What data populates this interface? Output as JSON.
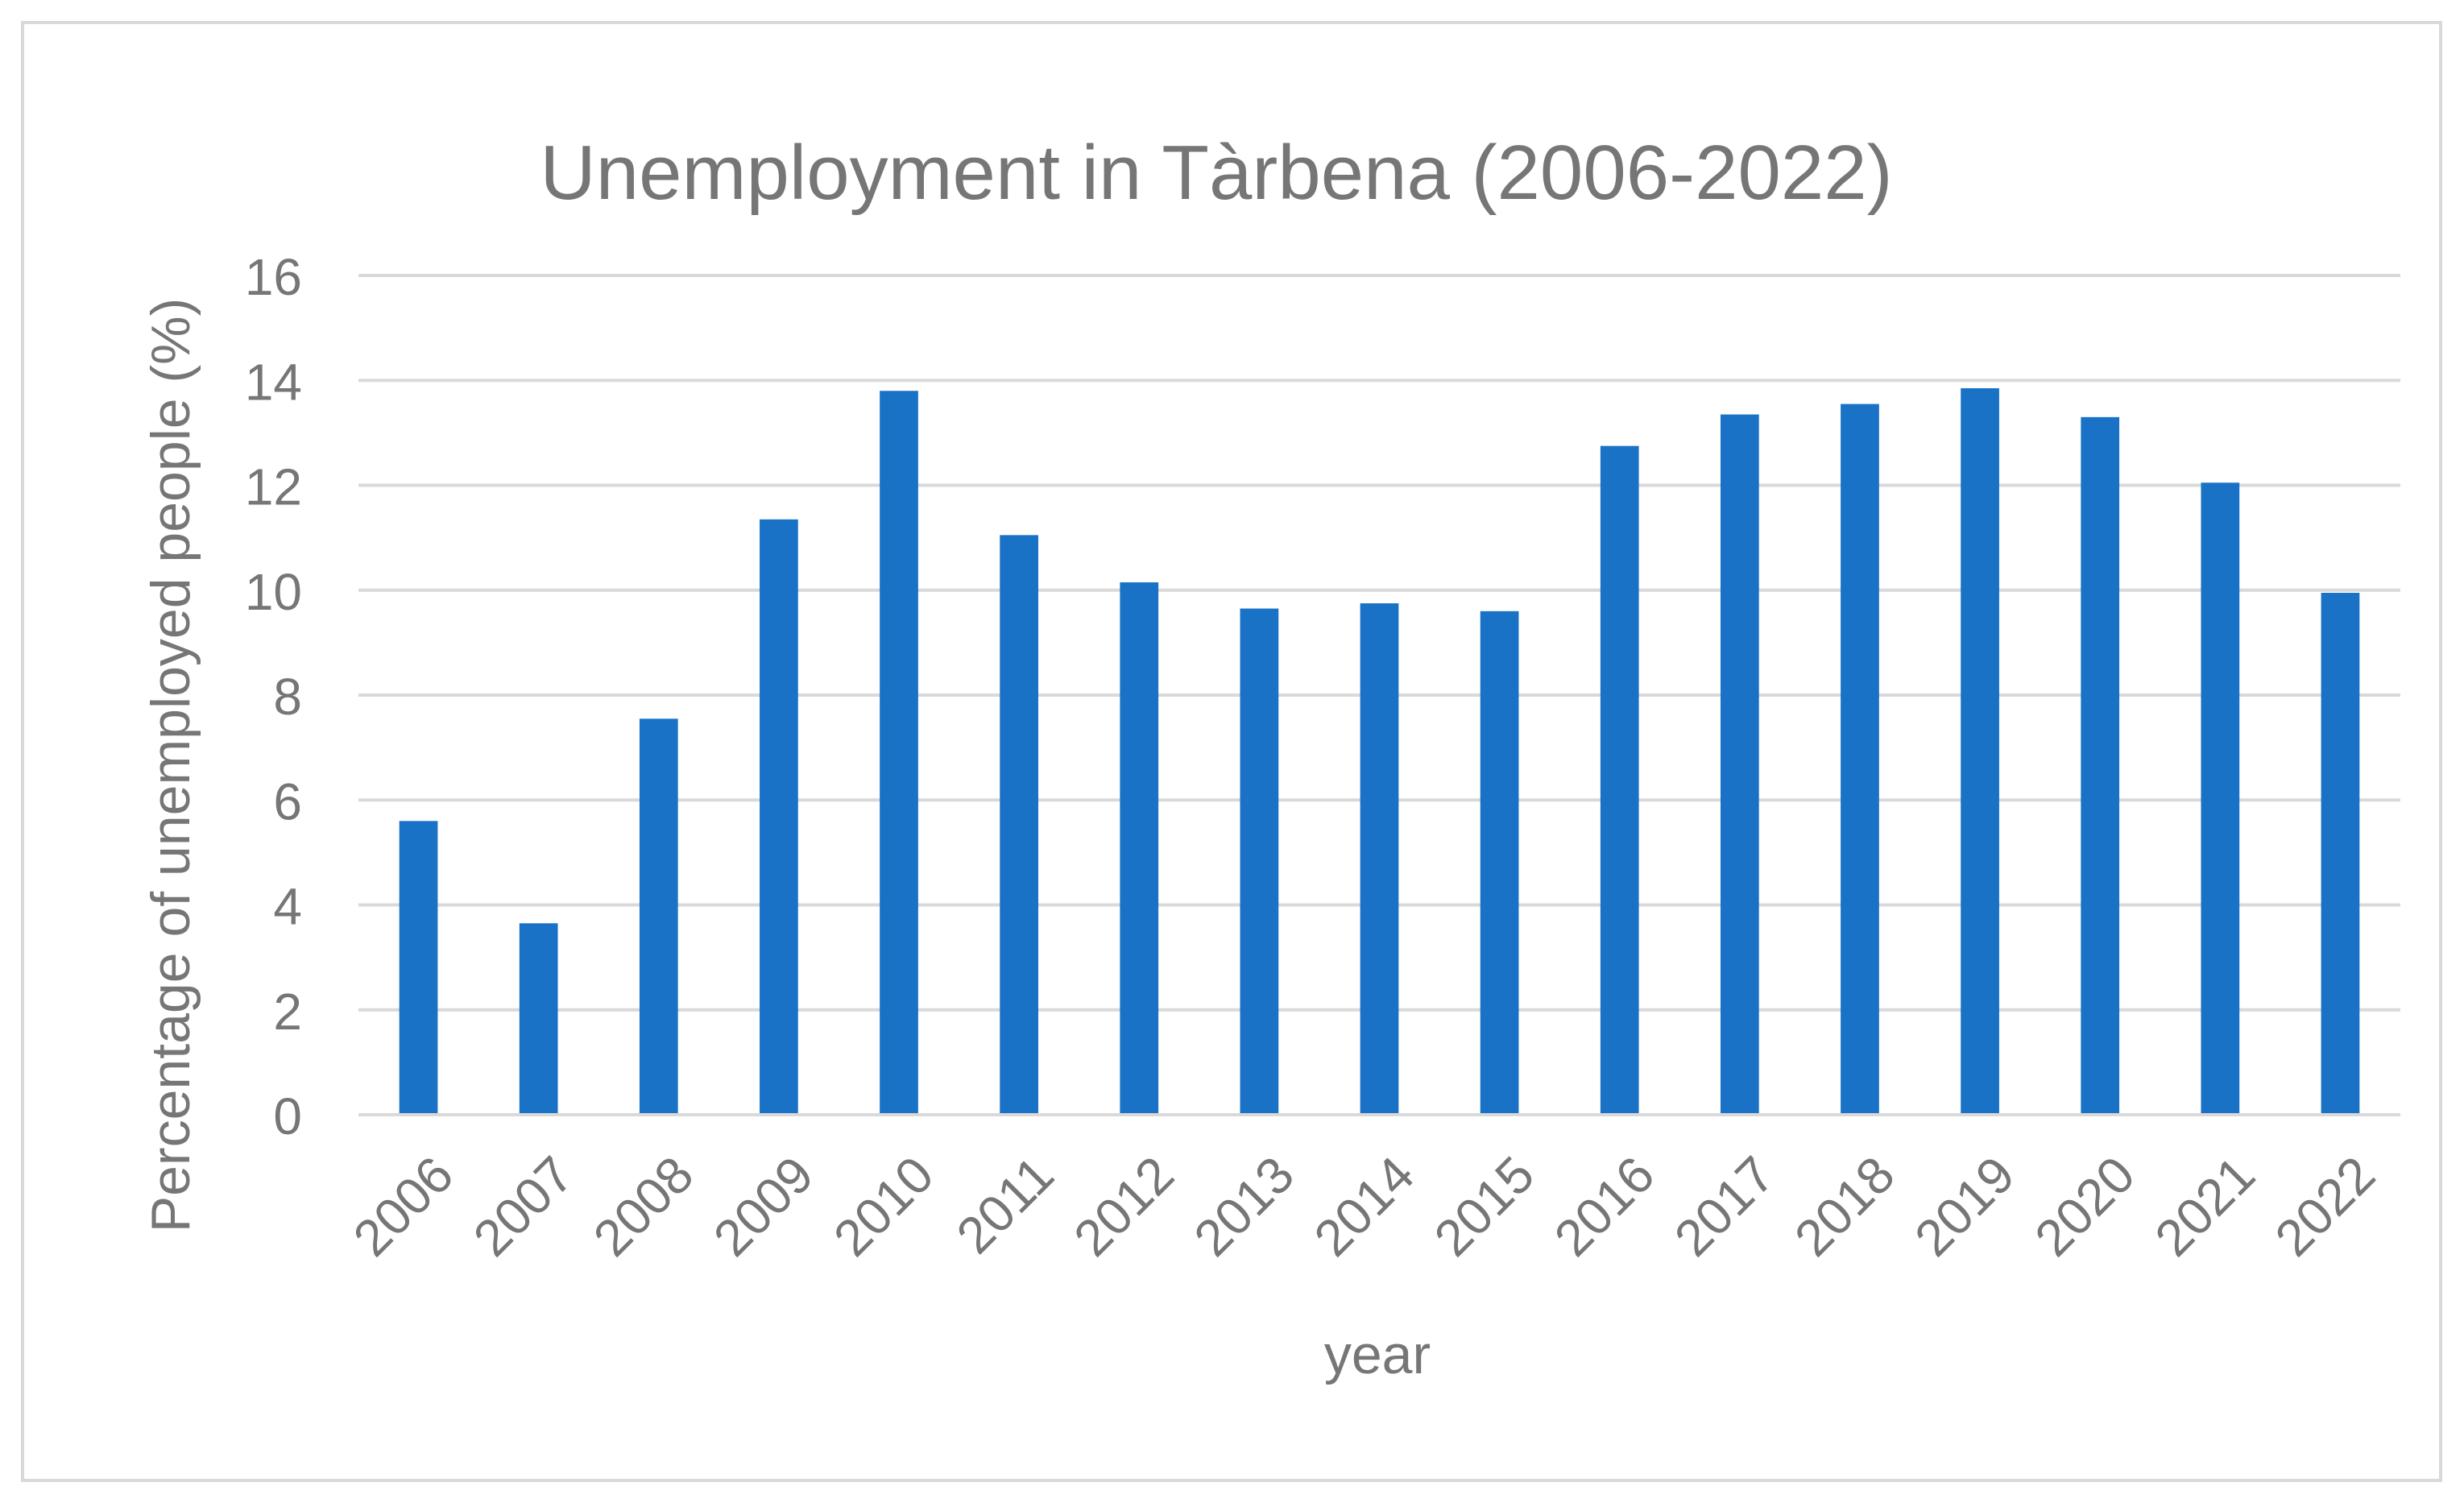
{
  "chart_data": {
    "type": "bar",
    "title": "Unemployment in Tàrbena (2006-2022)",
    "xlabel": "year",
    "ylabel": "Percentage of unemployed people (%)",
    "ylim": [
      0,
      16
    ],
    "yticks": [
      0,
      2,
      4,
      6,
      8,
      10,
      12,
      14,
      16
    ],
    "grid": true,
    "legend": "none",
    "categories": [
      "2006",
      "2007",
      "2008",
      "2009",
      "2010",
      "2011",
      "2012",
      "2013",
      "2014",
      "2015",
      "2016",
      "2017",
      "2018",
      "2019",
      "2020",
      "2021",
      "2022"
    ],
    "series": [
      {
        "values": [
          5.6,
          3.65,
          7.55,
          11.35,
          13.8,
          11.05,
          10.15,
          9.65,
          9.75,
          9.6,
          12.75,
          13.35,
          13.55,
          13.85,
          13.3,
          12.05,
          9.95
        ],
        "color": "#1a72c6"
      }
    ],
    "colors": {
      "bar": "#1a72c6",
      "grid": "#d9d9d9",
      "text": "#767676",
      "border": "#d9d9d9",
      "axis": "#d9d9d9"
    }
  }
}
